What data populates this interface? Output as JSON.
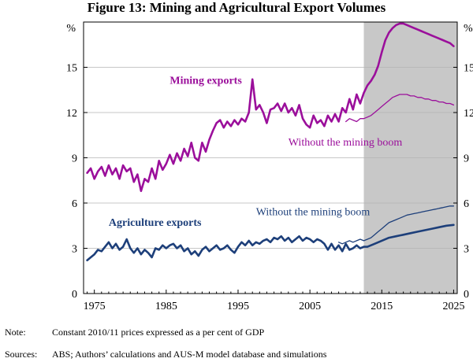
{
  "title": "Figure 13: Mining and Agricultural Export Volumes",
  "notes": {
    "note_label": "Note:",
    "note_text": "Constant 2010/11 prices expressed as a per cent of GDP",
    "sources_label": "Sources:",
    "sources_text": "ABS; Authors’ calculations and AUS-M model database and simulations"
  },
  "colors": {
    "mining": "#9b0f9b",
    "agriculture": "#1d3f7a",
    "shade": "#c8c8c8"
  },
  "chart_data": {
    "type": "line",
    "title": "Figure 13: Mining and Agricultural Export Volumes",
    "unit_label": "%",
    "xlim": [
      1973.5,
      2025.5
    ],
    "ylim": [
      0,
      18
    ],
    "x_ticks": [
      1975,
      1985,
      1995,
      2005,
      2015,
      2025
    ],
    "x_tick_labels": [
      "1975",
      "1985",
      "1995",
      "2005",
      "2015",
      "2025"
    ],
    "y_ticks": [
      0,
      3,
      6,
      9,
      12,
      15
    ],
    "y_tick_labels": [
      "0",
      "3",
      "6",
      "9",
      "12",
      "15"
    ],
    "shaded_region": {
      "from": 2012.5,
      "to": 2025.5,
      "meaning": "projection period"
    },
    "grid": "horizontal",
    "series": [
      {
        "name": "Mining exports",
        "style": "thick",
        "points": [
          [
            1974,
            8.0
          ],
          [
            1974.5,
            8.3
          ],
          [
            1975,
            7.6
          ],
          [
            1975.5,
            8.1
          ],
          [
            1976,
            8.4
          ],
          [
            1976.5,
            7.8
          ],
          [
            1977,
            8.5
          ],
          [
            1977.5,
            7.9
          ],
          [
            1978,
            8.3
          ],
          [
            1978.5,
            7.6
          ],
          [
            1979,
            8.5
          ],
          [
            1979.5,
            8.1
          ],
          [
            1980,
            8.3
          ],
          [
            1980.5,
            7.4
          ],
          [
            1981,
            7.9
          ],
          [
            1981.5,
            6.8
          ],
          [
            1982,
            7.6
          ],
          [
            1982.5,
            7.4
          ],
          [
            1983,
            8.3
          ],
          [
            1983.5,
            7.6
          ],
          [
            1984,
            8.8
          ],
          [
            1984.5,
            8.2
          ],
          [
            1985,
            8.6
          ],
          [
            1985.5,
            9.2
          ],
          [
            1986,
            8.6
          ],
          [
            1986.5,
            9.3
          ],
          [
            1987,
            8.8
          ],
          [
            1987.5,
            9.6
          ],
          [
            1988,
            9.1
          ],
          [
            1988.5,
            10.0
          ],
          [
            1989,
            9.0
          ],
          [
            1989.5,
            8.8
          ],
          [
            1990,
            10.0
          ],
          [
            1990.5,
            9.4
          ],
          [
            1991,
            10.2
          ],
          [
            1991.5,
            10.8
          ],
          [
            1992,
            11.3
          ],
          [
            1992.5,
            11.5
          ],
          [
            1993,
            11.0
          ],
          [
            1993.5,
            11.4
          ],
          [
            1994,
            11.1
          ],
          [
            1994.5,
            11.5
          ],
          [
            1995,
            11.2
          ],
          [
            1995.5,
            11.6
          ],
          [
            1996,
            11.4
          ],
          [
            1996.5,
            12.0
          ],
          [
            1997,
            14.2
          ],
          [
            1997.5,
            12.2
          ],
          [
            1998,
            12.5
          ],
          [
            1998.5,
            12.0
          ],
          [
            1999,
            11.3
          ],
          [
            1999.5,
            12.2
          ],
          [
            2000,
            12.3
          ],
          [
            2000.5,
            12.6
          ],
          [
            2001,
            12.1
          ],
          [
            2001.5,
            12.6
          ],
          [
            2002,
            12.0
          ],
          [
            2002.5,
            12.3
          ],
          [
            2003,
            11.8
          ],
          [
            2003.5,
            12.5
          ],
          [
            2004,
            11.6
          ],
          [
            2004.5,
            11.2
          ],
          [
            2005,
            11.0
          ],
          [
            2005.5,
            11.8
          ],
          [
            2006,
            11.3
          ],
          [
            2006.5,
            11.5
          ],
          [
            2007,
            11.1
          ],
          [
            2007.5,
            11.8
          ],
          [
            2008,
            11.4
          ],
          [
            2008.5,
            11.9
          ],
          [
            2009,
            11.4
          ],
          [
            2009.5,
            12.3
          ],
          [
            2010,
            12.0
          ],
          [
            2010.5,
            12.9
          ],
          [
            2011,
            12.2
          ],
          [
            2011.5,
            13.2
          ],
          [
            2012,
            12.6
          ],
          [
            2012.5,
            13.3
          ],
          [
            2013,
            13.8
          ],
          [
            2013.5,
            14.1
          ],
          [
            2014,
            14.5
          ],
          [
            2014.5,
            15.1
          ],
          [
            2015,
            16.0
          ],
          [
            2015.5,
            16.8
          ],
          [
            2016,
            17.3
          ],
          [
            2016.5,
            17.6
          ],
          [
            2017,
            17.8
          ],
          [
            2017.5,
            17.9
          ],
          [
            2018,
            17.9
          ],
          [
            2018.5,
            17.8
          ],
          [
            2019,
            17.7
          ],
          [
            2019.5,
            17.6
          ],
          [
            2020,
            17.5
          ],
          [
            2020.5,
            17.4
          ],
          [
            2021,
            17.3
          ],
          [
            2021.5,
            17.2
          ],
          [
            2022,
            17.1
          ],
          [
            2022.5,
            17.0
          ],
          [
            2023,
            16.9
          ],
          [
            2023.5,
            16.8
          ],
          [
            2024,
            16.7
          ],
          [
            2024.5,
            16.6
          ],
          [
            2025,
            16.4
          ]
        ]
      },
      {
        "name": "Mining without the mining boom",
        "style": "thin",
        "points": [
          [
            2010,
            11.4
          ],
          [
            2010.5,
            11.6
          ],
          [
            2011,
            11.5
          ],
          [
            2011.5,
            11.4
          ],
          [
            2012,
            11.6
          ],
          [
            2012.5,
            11.6
          ],
          [
            2013,
            11.7
          ],
          [
            2013.5,
            11.8
          ],
          [
            2014,
            12.0
          ],
          [
            2014.5,
            12.2
          ],
          [
            2015,
            12.4
          ],
          [
            2015.5,
            12.6
          ],
          [
            2016,
            12.8
          ],
          [
            2016.5,
            13.0
          ],
          [
            2017,
            13.1
          ],
          [
            2017.5,
            13.2
          ],
          [
            2018,
            13.2
          ],
          [
            2018.5,
            13.2
          ],
          [
            2019,
            13.1
          ],
          [
            2019.5,
            13.1
          ],
          [
            2020,
            13.0
          ],
          [
            2020.5,
            13.0
          ],
          [
            2021,
            12.9
          ],
          [
            2021.5,
            12.9
          ],
          [
            2022,
            12.8
          ],
          [
            2022.5,
            12.8
          ],
          [
            2023,
            12.7
          ],
          [
            2023.5,
            12.7
          ],
          [
            2024,
            12.6
          ],
          [
            2024.5,
            12.6
          ],
          [
            2025,
            12.5
          ]
        ]
      },
      {
        "name": "Agriculture exports",
        "style": "thick",
        "points": [
          [
            1974,
            2.2
          ],
          [
            1974.5,
            2.4
          ],
          [
            1975,
            2.6
          ],
          [
            1975.5,
            2.9
          ],
          [
            1976,
            2.8
          ],
          [
            1976.5,
            3.1
          ],
          [
            1977,
            3.4
          ],
          [
            1977.5,
            3.0
          ],
          [
            1978,
            3.3
          ],
          [
            1978.5,
            2.9
          ],
          [
            1979,
            3.1
          ],
          [
            1979.5,
            3.6
          ],
          [
            1980,
            3.0
          ],
          [
            1980.5,
            2.7
          ],
          [
            1981,
            3.0
          ],
          [
            1981.5,
            2.6
          ],
          [
            1982,
            2.9
          ],
          [
            1982.5,
            2.7
          ],
          [
            1983,
            2.4
          ],
          [
            1983.5,
            3.0
          ],
          [
            1984,
            2.9
          ],
          [
            1984.5,
            3.2
          ],
          [
            1985,
            3.0
          ],
          [
            1985.5,
            3.2
          ],
          [
            1986,
            3.3
          ],
          [
            1986.5,
            3.0
          ],
          [
            1987,
            3.2
          ],
          [
            1987.5,
            2.8
          ],
          [
            1988,
            3.0
          ],
          [
            1988.5,
            2.6
          ],
          [
            1989,
            2.8
          ],
          [
            1989.5,
            2.5
          ],
          [
            1990,
            2.9
          ],
          [
            1990.5,
            3.1
          ],
          [
            1991,
            2.8
          ],
          [
            1991.5,
            3.0
          ],
          [
            1992,
            3.2
          ],
          [
            1992.5,
            2.9
          ],
          [
            1993,
            3.0
          ],
          [
            1993.5,
            3.2
          ],
          [
            1994,
            2.9
          ],
          [
            1994.5,
            2.7
          ],
          [
            1995,
            3.1
          ],
          [
            1995.5,
            3.4
          ],
          [
            1996,
            3.2
          ],
          [
            1996.5,
            3.5
          ],
          [
            1997,
            3.2
          ],
          [
            1997.5,
            3.4
          ],
          [
            1998,
            3.3
          ],
          [
            1998.5,
            3.5
          ],
          [
            1999,
            3.6
          ],
          [
            1999.5,
            3.4
          ],
          [
            2000,
            3.7
          ],
          [
            2000.5,
            3.6
          ],
          [
            2001,
            3.8
          ],
          [
            2001.5,
            3.5
          ],
          [
            2002,
            3.7
          ],
          [
            2002.5,
            3.4
          ],
          [
            2003,
            3.6
          ],
          [
            2003.5,
            3.8
          ],
          [
            2004,
            3.5
          ],
          [
            2004.5,
            3.7
          ],
          [
            2005,
            3.6
          ],
          [
            2005.5,
            3.4
          ],
          [
            2006,
            3.6
          ],
          [
            2006.5,
            3.5
          ],
          [
            2007,
            3.3
          ],
          [
            2007.5,
            2.9
          ],
          [
            2008,
            3.3
          ],
          [
            2008.5,
            2.9
          ],
          [
            2009,
            3.2
          ],
          [
            2009.5,
            2.8
          ],
          [
            2010,
            3.3
          ],
          [
            2010.5,
            2.9
          ],
          [
            2011,
            3.0
          ],
          [
            2011.5,
            3.2
          ],
          [
            2012,
            3.0
          ],
          [
            2012.5,
            3.1
          ],
          [
            2013,
            3.1
          ],
          [
            2014,
            3.3
          ],
          [
            2015,
            3.5
          ],
          [
            2016,
            3.7
          ],
          [
            2017,
            3.8
          ],
          [
            2018,
            3.9
          ],
          [
            2019,
            4.0
          ],
          [
            2020,
            4.1
          ],
          [
            2021,
            4.2
          ],
          [
            2022,
            4.3
          ],
          [
            2023,
            4.4
          ],
          [
            2024,
            4.5
          ],
          [
            2025,
            4.55
          ]
        ]
      },
      {
        "name": "Agriculture without the mining boom",
        "style": "thin",
        "points": [
          [
            2009,
            3.4
          ],
          [
            2009.5,
            3.3
          ],
          [
            2010,
            3.4
          ],
          [
            2010.5,
            3.5
          ],
          [
            2011,
            3.4
          ],
          [
            2011.5,
            3.5
          ],
          [
            2012,
            3.6
          ],
          [
            2012.5,
            3.5
          ],
          [
            2013,
            3.6
          ],
          [
            2013.5,
            3.7
          ],
          [
            2014,
            3.9
          ],
          [
            2014.5,
            4.1
          ],
          [
            2015,
            4.3
          ],
          [
            2015.5,
            4.5
          ],
          [
            2016,
            4.7
          ],
          [
            2016.5,
            4.8
          ],
          [
            2017,
            4.9
          ],
          [
            2017.5,
            5.0
          ],
          [
            2018,
            5.1
          ],
          [
            2018.5,
            5.2
          ],
          [
            2019,
            5.25
          ],
          [
            2019.5,
            5.3
          ],
          [
            2020,
            5.35
          ],
          [
            2020.5,
            5.4
          ],
          [
            2021,
            5.45
          ],
          [
            2021.5,
            5.5
          ],
          [
            2022,
            5.55
          ],
          [
            2022.5,
            5.6
          ],
          [
            2023,
            5.65
          ],
          [
            2023.5,
            5.7
          ],
          [
            2024,
            5.75
          ],
          [
            2024.5,
            5.8
          ],
          [
            2025,
            5.8
          ]
        ]
      }
    ],
    "annotations": {
      "mining_exports": {
        "text": "Mining exports",
        "x": 1985.5,
        "y": 13.9
      },
      "mining_without": {
        "text": "Without the mining boom",
        "x": 2002,
        "y": 9.8
      },
      "agri_exports": {
        "text": "Agriculture exports",
        "x": 1977,
        "y": 4.5
      },
      "agri_without": {
        "text": "Without the mining boom",
        "x": 1997.5,
        "y": 5.2
      }
    }
  }
}
